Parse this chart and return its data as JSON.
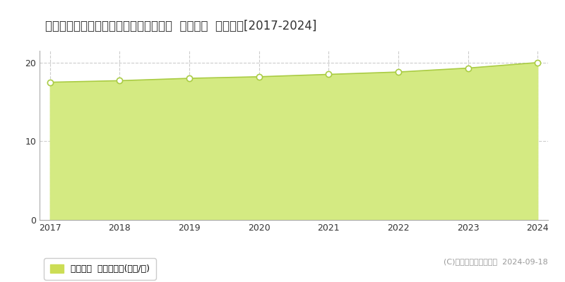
{
  "title": "栃木県宇都宮市ゆいの杜４丁目２番２外  公示地価  地価推移[2017-2024]",
  "years": [
    2017,
    2018,
    2019,
    2020,
    2021,
    2022,
    2023,
    2024
  ],
  "values": [
    17.5,
    17.7,
    18.0,
    18.2,
    18.5,
    18.8,
    19.3,
    20.0
  ],
  "line_color": "#aacc44",
  "fill_color": "#d4ea82",
  "fill_alpha": 1.0,
  "marker_facecolor": "#ffffff",
  "marker_edgecolor": "#aacc44",
  "ylim": [
    0,
    21.5
  ],
  "yticks": [
    0,
    10,
    20
  ],
  "background_color": "#ffffff",
  "plot_bg_color": "#ffffff",
  "grid_color": "#cccccc",
  "legend_label": "公示地価  平均坪単価(万円/坪)",
  "legend_square_color": "#ccdd55",
  "copyright_text": "(C)土地価格ドットコム  2024-09-18",
  "title_fontsize": 12,
  "tick_fontsize": 9,
  "legend_fontsize": 9,
  "copyright_fontsize": 8
}
